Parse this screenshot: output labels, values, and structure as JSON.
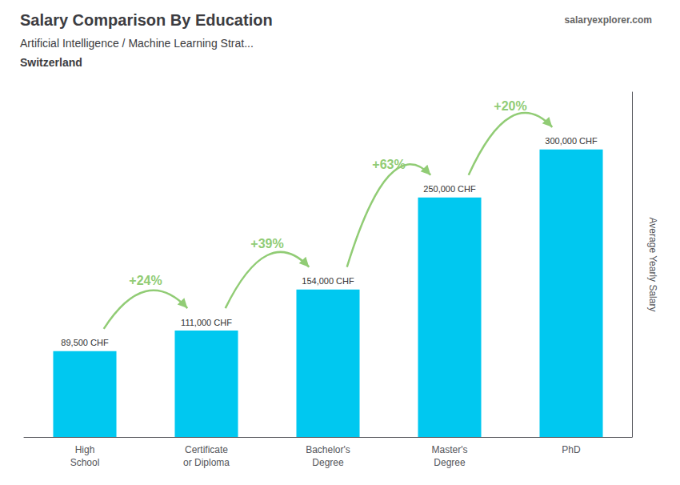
{
  "chart_data": {
    "type": "bar",
    "title": "Salary Comparison By Education",
    "subtitle": [
      "Artificial Intelligence / Machine Learning Strat...",
      "Switzerland"
    ],
    "source": "salaryexplorer.com",
    "ylabel": "Average Yearly Salary",
    "categories": [
      "High\nSchool",
      "Certificate\nor Diploma",
      "Bachelor's\nDegree",
      "Master's\nDegree",
      "PhD"
    ],
    "values": [
      89500,
      111000,
      154000,
      250000,
      300000
    ],
    "value_labels": [
      "89,500 CHF",
      "111,000 CHF",
      "154,000 CHF",
      "250,000 CHF",
      "300,000 CHF"
    ],
    "data_labels": true,
    "annotations": [
      "+24%",
      "+39%",
      "+63%",
      "+20%"
    ],
    "color": "#00c8f0",
    "ylim": [
      0,
      360000
    ],
    "tick_labels": "x",
    "grid": false
  }
}
